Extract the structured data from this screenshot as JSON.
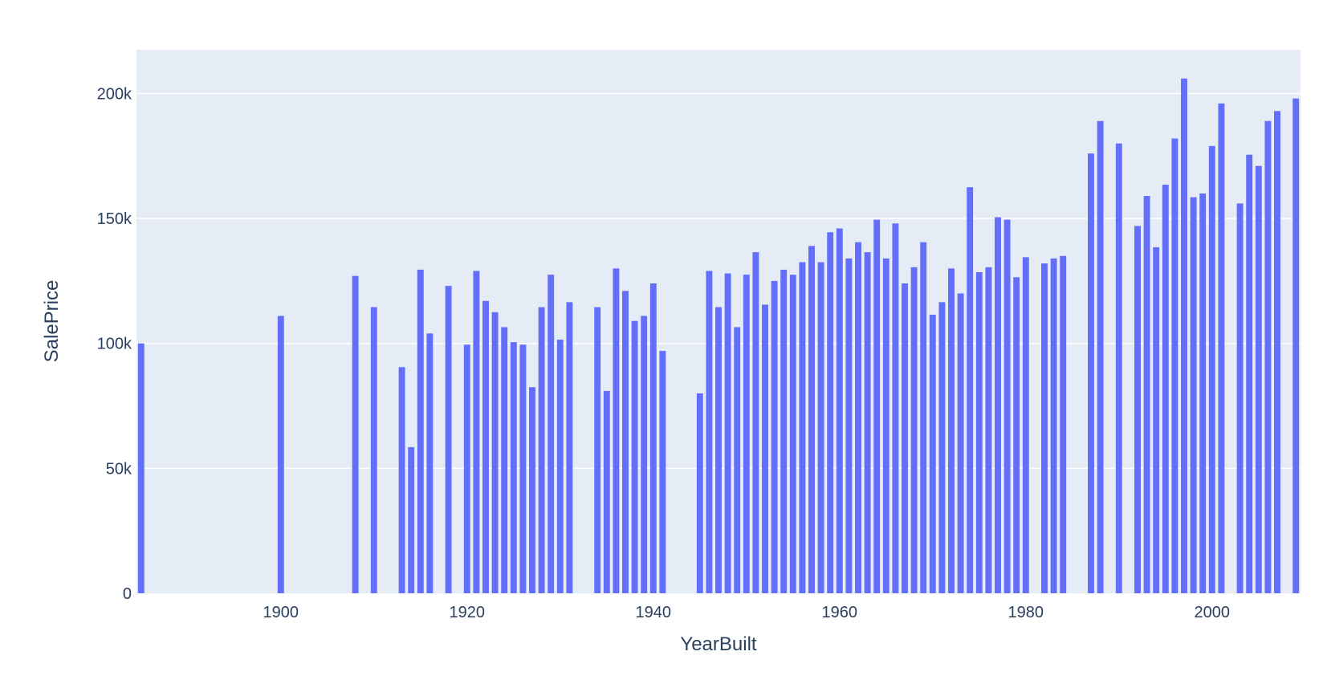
{
  "chart_data": {
    "type": "bar",
    "title": "",
    "xlabel": "YearBuilt",
    "ylabel": "SalePrice",
    "xlim": [
      1884.5,
      2009.5
    ],
    "ylim": [
      0,
      217500
    ],
    "x_ticks": [
      1900,
      1920,
      1940,
      1960,
      1980,
      2000
    ],
    "x_tick_labels": [
      "1900",
      "1920",
      "1940",
      "1960",
      "1980",
      "2000"
    ],
    "y_ticks": [
      0,
      50000,
      100000,
      150000,
      200000
    ],
    "y_tick_labels": [
      "0",
      "50k",
      "100k",
      "150k",
      "200k"
    ],
    "grid": true,
    "colors": {
      "bar": "#636efa",
      "plot_bg": "#e5ecf6",
      "grid": "#ffffff",
      "text": "#2a3f5f"
    },
    "x": [
      1885,
      1900,
      1908,
      1910,
      1913,
      1914,
      1915,
      1916,
      1918,
      1920,
      1921,
      1922,
      1923,
      1924,
      1925,
      1926,
      1927,
      1928,
      1929,
      1930,
      1931,
      1934,
      1935,
      1936,
      1937,
      1938,
      1939,
      1940,
      1941,
      1945,
      1946,
      1947,
      1948,
      1949,
      1950,
      1951,
      1952,
      1953,
      1954,
      1955,
      1956,
      1957,
      1958,
      1959,
      1960,
      1961,
      1962,
      1963,
      1964,
      1965,
      1966,
      1967,
      1968,
      1969,
      1970,
      1971,
      1972,
      1973,
      1974,
      1975,
      1976,
      1977,
      1978,
      1979,
      1980,
      1982,
      1983,
      1984,
      1987,
      1988,
      1990,
      1992,
      1993,
      1994,
      1995,
      1996,
      1997,
      1998,
      1999,
      2000,
      2001,
      2003,
      2004,
      2005,
      2006,
      2007,
      2009
    ],
    "values": [
      100000,
      111000,
      127000,
      114500,
      90500,
      58500,
      129500,
      104000,
      123000,
      99500,
      129000,
      117000,
      112500,
      106500,
      100500,
      99500,
      82500,
      114500,
      127500,
      101500,
      116500,
      114500,
      81000,
      130000,
      121000,
      109000,
      111000,
      124000,
      97000,
      80000,
      129000,
      114500,
      128000,
      106500,
      127500,
      136500,
      115500,
      125000,
      129500,
      127500,
      132500,
      139000,
      132500,
      144500,
      146000,
      134000,
      140500,
      136500,
      149500,
      134000,
      148000,
      124000,
      130500,
      140500,
      111500,
      116500,
      130000,
      120000,
      162500,
      128500,
      130500,
      150500,
      149500,
      126500,
      134500,
      132000,
      134000,
      135000,
      176000,
      189000,
      180000,
      147000,
      159000,
      138500,
      163500,
      182000,
      206000,
      158500,
      160000,
      179000,
      196000,
      156000,
      175500,
      171000,
      189000,
      193000,
      198000
    ]
  }
}
